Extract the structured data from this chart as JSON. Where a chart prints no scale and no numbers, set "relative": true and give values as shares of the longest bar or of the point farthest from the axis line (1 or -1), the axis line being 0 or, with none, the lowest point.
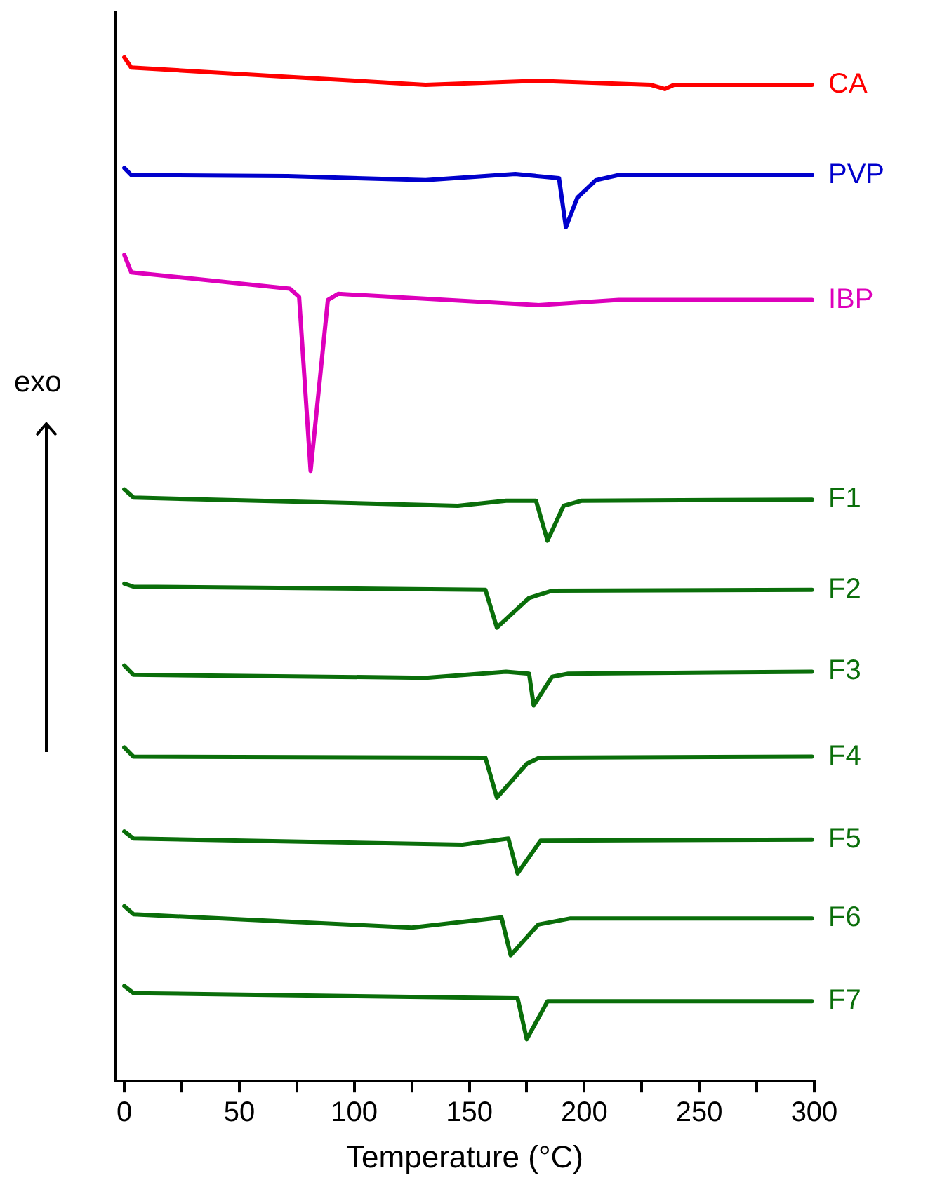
{
  "chart_data": {
    "type": "line",
    "xlabel": "Temperature (°C)",
    "ylabel": "exo",
    "relative": true,
    "xlim": [
      -4,
      300
    ],
    "xticks": [
      0,
      {
        "value": 25,
        "label": null
      },
      50,
      {
        "value": 75,
        "label": null
      },
      100,
      {
        "value": 125,
        "label": null
      },
      150,
      {
        "value": 175,
        "label": null
      },
      200,
      {
        "value": 225,
        "label": null
      },
      250,
      {
        "value": 275,
        "label": null
      },
      300
    ],
    "legend": false,
    "grid": false,
    "series": [
      {
        "name": "CA",
        "color": "#ff0000",
        "x": [
          0,
          3,
          71,
          131,
          180,
          229,
          235,
          239,
          299
        ],
        "values": [
          1.0,
          0.99,
          0.981,
          0.973,
          0.977,
          0.973,
          0.969,
          0.973,
          0.973
        ]
      },
      {
        "name": "PVP",
        "color": "#0000cc",
        "x": [
          0,
          3,
          71,
          131,
          170,
          189,
          192,
          197,
          205,
          215,
          299
        ],
        "values": [
          0.892,
          0.885,
          0.884,
          0.88,
          0.886,
          0.882,
          0.834,
          0.863,
          0.88,
          0.885,
          0.885
        ]
      },
      {
        "name": "IBP",
        "color": "#dd00bb",
        "x": [
          0,
          3,
          72,
          76,
          81,
          88.5,
          93,
          180,
          215,
          299
        ],
        "values": [
          0.807,
          0.79,
          0.774,
          0.766,
          0.596,
          0.763,
          0.769,
          0.758,
          0.763,
          0.763
        ]
      },
      {
        "name": "F1",
        "color": "#0a6e0a",
        "x": [
          0,
          4,
          145,
          166,
          179,
          184,
          191,
          199,
          299
        ],
        "values": [
          0.578,
          0.57,
          0.562,
          0.567,
          0.567,
          0.528,
          0.562,
          0.567,
          0.568
        ]
      },
      {
        "name": "F2",
        "color": "#0a6e0a",
        "x": [
          0,
          4,
          157,
          162,
          176,
          186,
          299
        ],
        "values": [
          0.486,
          0.483,
          0.48,
          0.443,
          0.472,
          0.479,
          0.48
        ]
      },
      {
        "name": "F3",
        "color": "#0a6e0a",
        "x": [
          0,
          4,
          131,
          166,
          176,
          178,
          186,
          193,
          299
        ],
        "values": [
          0.406,
          0.397,
          0.394,
          0.4,
          0.398,
          0.367,
          0.395,
          0.398,
          0.4
        ]
      },
      {
        "name": "F4",
        "color": "#0a6e0a",
        "x": [
          0,
          4,
          157,
          162,
          175,
          180.5,
          299
        ],
        "values": [
          0.326,
          0.317,
          0.316,
          0.277,
          0.31,
          0.316,
          0.317
        ]
      },
      {
        "name": "F5",
        "color": "#0a6e0a",
        "x": [
          0,
          4,
          147,
          167,
          171,
          181,
          299
        ],
        "values": [
          0.244,
          0.237,
          0.231,
          0.237,
          0.203,
          0.235,
          0.236
        ]
      },
      {
        "name": "F6",
        "color": "#0a6e0a",
        "x": [
          0,
          4,
          125,
          164,
          168,
          180,
          194,
          299
        ],
        "values": [
          0.171,
          0.163,
          0.15,
          0.16,
          0.123,
          0.153,
          0.159,
          0.159
        ]
      },
      {
        "name": "F7",
        "color": "#0a6e0a",
        "x": [
          0,
          4,
          171,
          175,
          184,
          299
        ],
        "values": [
          0.093,
          0.086,
          0.081,
          0.041,
          0.078,
          0.078
        ]
      }
    ]
  }
}
